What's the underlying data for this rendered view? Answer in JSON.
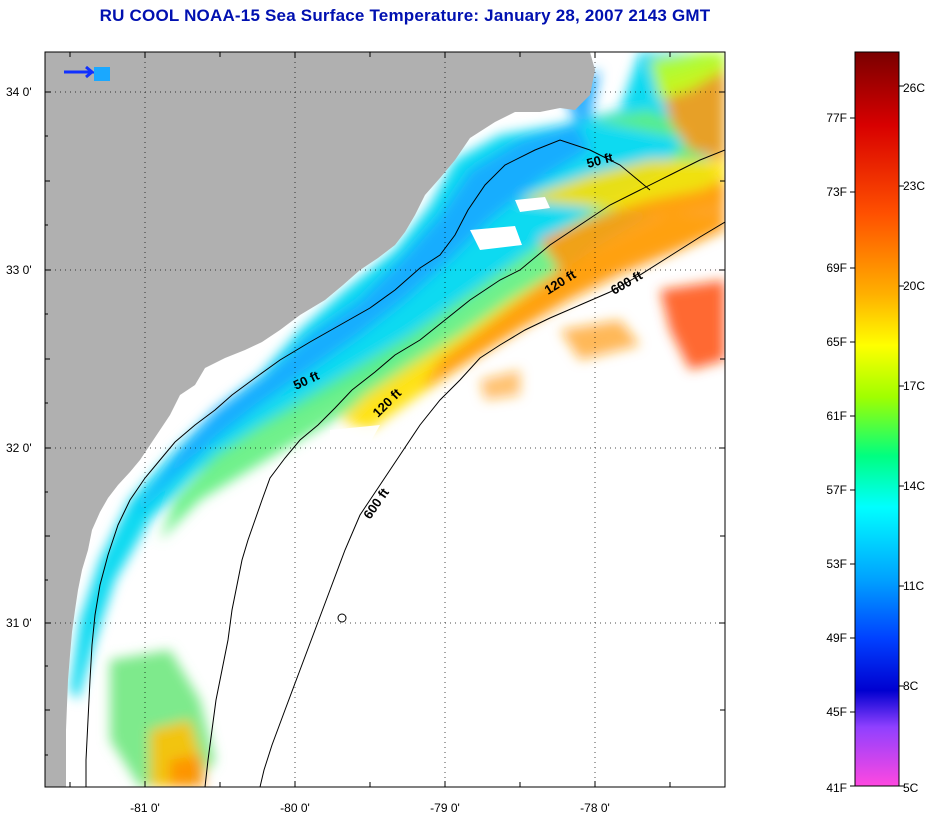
{
  "title": "RU COOL  NOAA-15  Sea Surface Temperature:  January 28, 2007 2143 GMT",
  "map": {
    "lat_labels": [
      "34 0'",
      "33 0'",
      "32 0'",
      "31 0'"
    ],
    "lon_labels": [
      "-81 0'",
      "-80 0'",
      "-79 0'",
      "-78 0'"
    ],
    "contour_labels": {
      "c50_upper": "50 ft",
      "c50_lower": "50 ft",
      "c120_upper": "120 ft",
      "c120_lower": "120 ft",
      "c600_upper": "600 ft",
      "c600_lower": "600 ft"
    },
    "colors": {
      "land": "#b0b0b0",
      "ocean_nodata": "#ffffff",
      "contour": "#000000",
      "grid": "#000000"
    }
  },
  "colorbar": {
    "fahrenheit_labels": [
      "77F",
      "73F",
      "69F",
      "65F",
      "61F",
      "57F",
      "53F",
      "49F",
      "45F",
      "41F"
    ],
    "celsius_labels": [
      "26C",
      "23C",
      "20C",
      "17C",
      "14C",
      "11C",
      "8C",
      "5C"
    ],
    "gradient_stops": [
      "#7a0000",
      "#d80000",
      "#ff3000",
      "#ff8a00",
      "#ffd200",
      "#e8ff00",
      "#70ff00",
      "#00ff80",
      "#00ffff",
      "#00a0ff",
      "#0030ff",
      "#0000c8",
      "#8a3cff",
      "#ff40ff",
      "#ff4ce0"
    ]
  }
}
